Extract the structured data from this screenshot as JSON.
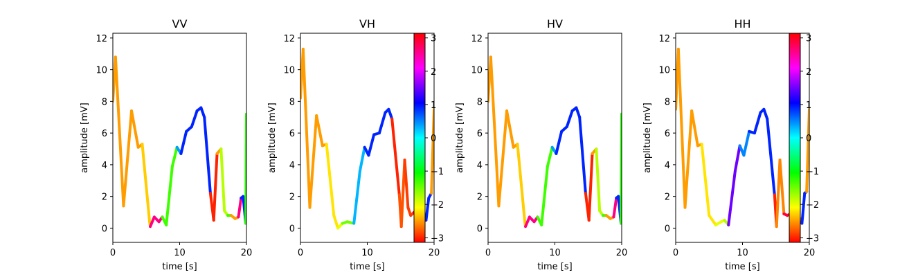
{
  "chart_data": [
    {
      "type": "line",
      "title": "VV",
      "xlabel": "time [s]",
      "ylabel": "amplitude [mV]",
      "xlim": [
        0,
        20
      ],
      "ylim": [
        -0.9,
        12.3
      ],
      "xticks": [
        0,
        10,
        20
      ],
      "yticks": [
        0,
        2,
        4,
        6,
        8,
        10,
        12
      ],
      "colormap": "hsv",
      "color_values": [
        -2.5,
        -2.5,
        -2.5,
        -2.3,
        2.6,
        2.6,
        -1.3,
        -1.3,
        0.4,
        0.9,
        0.9,
        0.9,
        0.9,
        -3.0,
        -2.5,
        -1.8,
        -1.3,
        -2.5,
        2.6,
        0.9,
        -1.2
      ],
      "series": [
        {
          "x": [
            0,
            0.4,
            1.6,
            2.8,
            3.8,
            4.4,
            5.5,
            5.6,
            6.2,
            6.9,
            7.4,
            8.0,
            8.9,
            9.6,
            10.2,
            11.0,
            11.8,
            12.6,
            13.2,
            13.7,
            14.6,
            15.1,
            15.6,
            16.2,
            16.7,
            17.2,
            17.7,
            18.3,
            18.8,
            19.2,
            19.5,
            19.9,
            20.0
          ],
          "y": [
            8.0,
            10.8,
            1.4,
            7.4,
            5.1,
            5.3,
            0.4,
            0.1,
            0.7,
            0.4,
            0.7,
            0.2,
            3.9,
            5.1,
            4.7,
            6.1,
            6.4,
            7.4,
            7.6,
            7.0,
            2.2,
            0.5,
            4.7,
            5.0,
            1.1,
            0.8,
            0.8,
            0.6,
            0.7,
            1.9,
            2.0,
            0.3,
            7.2
          ]
        }
      ]
    },
    {
      "type": "line",
      "title": "VH",
      "xlabel": "time [s]",
      "ylabel": "amplitude [mV]",
      "xlim": [
        0,
        20
      ],
      "ylim": [
        -0.9,
        12.3
      ],
      "xticks": [
        0,
        10,
        20
      ],
      "yticks": [
        0,
        2,
        4,
        6,
        8,
        10,
        12
      ],
      "colormap": "hsv",
      "colorbar_ticks": [
        3,
        2,
        1,
        0,
        -1,
        -2,
        -3
      ],
      "colorbar_range": [
        -3.14,
        3.14
      ],
      "color_values": [
        -2.5,
        -2.5,
        -2.5,
        -2.2,
        -2.0,
        -1.5,
        0.3,
        0.9,
        0.9,
        0.9,
        0.9,
        -3.0,
        -2.8,
        -2.9,
        -2.9,
        2.8,
        2.8,
        0.9,
        -2.5
      ],
      "series": [
        {
          "x": [
            0,
            0.4,
            1.4,
            2.4,
            3.3,
            3.9,
            5.0,
            5.6,
            6.3,
            7.0,
            8.0,
            8.9,
            9.6,
            10.2,
            11.0,
            11.8,
            12.7,
            13.2,
            13.7,
            14.8,
            15.1,
            15.6,
            16.1,
            16.5,
            17.0,
            17.6,
            18.2,
            18.8,
            19.2,
            19.6,
            20.0
          ],
          "y": [
            8.2,
            11.3,
            1.3,
            7.1,
            5.2,
            5.3,
            0.8,
            0.0,
            0.3,
            0.4,
            0.3,
            3.6,
            5.1,
            4.6,
            5.9,
            6.0,
            7.3,
            7.5,
            6.9,
            2.1,
            0.1,
            4.3,
            1.3,
            0.8,
            1.0,
            0.5,
            0.9,
            0.5,
            1.9,
            2.2,
            7.5
          ]
        }
      ]
    },
    {
      "type": "line",
      "title": "HV",
      "xlabel": "time [s]",
      "ylabel": "amplitude [mV]",
      "xlim": [
        0,
        20
      ],
      "ylim": [
        -0.9,
        12.3
      ],
      "xticks": [
        0,
        10,
        20
      ],
      "yticks": [
        0,
        2,
        4,
        6,
        8,
        10,
        12
      ],
      "colormap": "hsv",
      "color_values": [
        -2.5,
        -2.5,
        -2.5,
        -2.3,
        2.6,
        2.6,
        -1.3,
        -1.3,
        0.4,
        0.9,
        0.9,
        0.9,
        0.9,
        -3.0,
        -2.5,
        -1.8,
        -1.3,
        -2.5,
        2.6,
        0.9,
        -1.2
      ],
      "series": [
        {
          "x": [
            0,
            0.4,
            1.6,
            2.8,
            3.8,
            4.4,
            5.5,
            5.6,
            6.2,
            6.9,
            7.4,
            8.0,
            8.9,
            9.6,
            10.2,
            11.0,
            11.8,
            12.6,
            13.2,
            13.7,
            14.6,
            15.1,
            15.6,
            16.2,
            16.7,
            17.2,
            17.7,
            18.3,
            18.8,
            19.2,
            19.5,
            19.9,
            20.0
          ],
          "y": [
            8.0,
            10.8,
            1.4,
            7.4,
            5.1,
            5.3,
            0.4,
            0.1,
            0.7,
            0.4,
            0.7,
            0.2,
            3.9,
            5.1,
            4.7,
            6.1,
            6.4,
            7.4,
            7.6,
            7.0,
            2.2,
            0.5,
            4.7,
            5.0,
            1.1,
            0.8,
            0.8,
            0.6,
            0.7,
            1.9,
            2.0,
            0.3,
            7.2
          ]
        }
      ]
    },
    {
      "type": "line",
      "title": "HH",
      "xlabel": "time [s]",
      "ylabel": "amplitude [mV]",
      "xlim": [
        0,
        20
      ],
      "ylim": [
        -0.9,
        12.3
      ],
      "xticks": [
        0,
        10,
        20
      ],
      "yticks": [
        0,
        2,
        4,
        6,
        8,
        10,
        12
      ],
      "colormap": "hsv",
      "colorbar_ticks": [
        3,
        2,
        1,
        0,
        -1,
        -2,
        -3
      ],
      "colorbar_range": [
        -3.14,
        3.14
      ],
      "color_values": [
        -2.5,
        -2.5,
        -2.5,
        -2.2,
        -2.0,
        -1.8,
        1.5,
        0.5,
        0.9,
        0.9,
        0.9,
        -3.0,
        -2.6,
        2.9,
        -2.8,
        -2.6,
        0.9,
        -2.5
      ],
      "series": [
        {
          "x": [
            0,
            0.4,
            1.4,
            2.4,
            3.3,
            3.9,
            5.0,
            6.0,
            6.8,
            7.3,
            7.9,
            8.9,
            9.6,
            10.2,
            11.0,
            11.8,
            12.7,
            13.2,
            13.7,
            14.8,
            15.1,
            15.6,
            16.2,
            16.7,
            17.2,
            17.8,
            18.4,
            18.9,
            19.3,
            19.6,
            20.0
          ],
          "y": [
            7.5,
            11.3,
            1.3,
            7.4,
            5.2,
            5.3,
            0.8,
            0.2,
            0.4,
            0.5,
            0.2,
            3.6,
            5.2,
            4.6,
            6.1,
            6.0,
            7.3,
            7.5,
            6.9,
            2.1,
            0.1,
            4.3,
            0.9,
            0.8,
            0.9,
            0.6,
            0.8,
            0.3,
            2.2,
            2.3,
            7.5
          ]
        }
      ]
    }
  ]
}
